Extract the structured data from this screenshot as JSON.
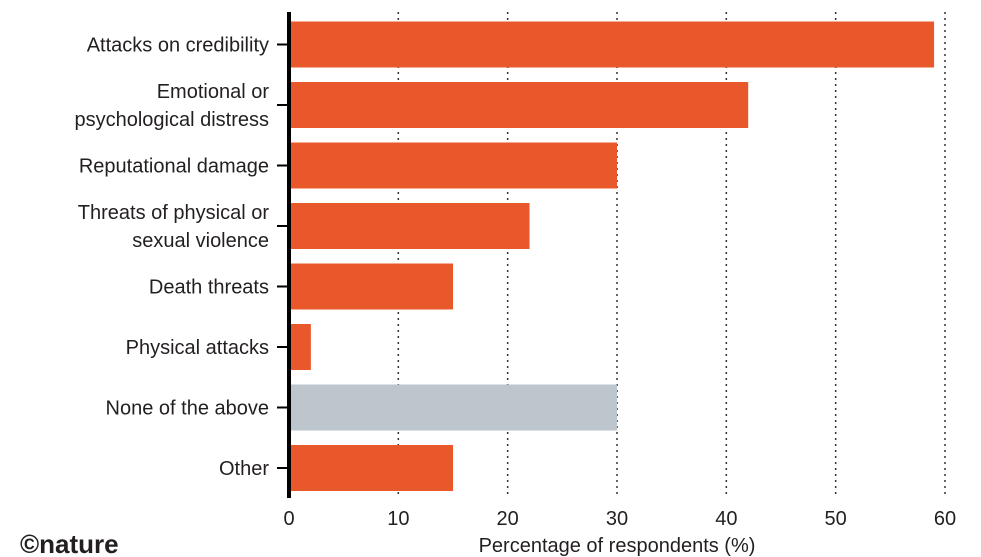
{
  "chart_data": {
    "type": "bar",
    "orientation": "horizontal",
    "categories": [
      [
        "Attacks on credibility"
      ],
      [
        "Emotional or",
        "psychological distress"
      ],
      [
        "Reputational damage"
      ],
      [
        "Threats of physical or",
        "sexual violence"
      ],
      [
        "Death threats"
      ],
      [
        "Physical attacks"
      ],
      [
        "None of the above"
      ],
      [
        "Other"
      ]
    ],
    "values": [
      59,
      42,
      30,
      22,
      15,
      2,
      30,
      15
    ],
    "bar_colors": [
      "#e8582a",
      "#e8582a",
      "#e8582a",
      "#e8582a",
      "#e8582a",
      "#e8582a",
      "#bcc6cc",
      "#e8582a"
    ],
    "xlabel": "Percentage of respondents (%)",
    "xlim": [
      0,
      60
    ],
    "xticks": [
      0,
      10,
      20,
      30,
      40,
      50,
      60
    ],
    "grid": "vertical dotted"
  },
  "credit": "©nature"
}
